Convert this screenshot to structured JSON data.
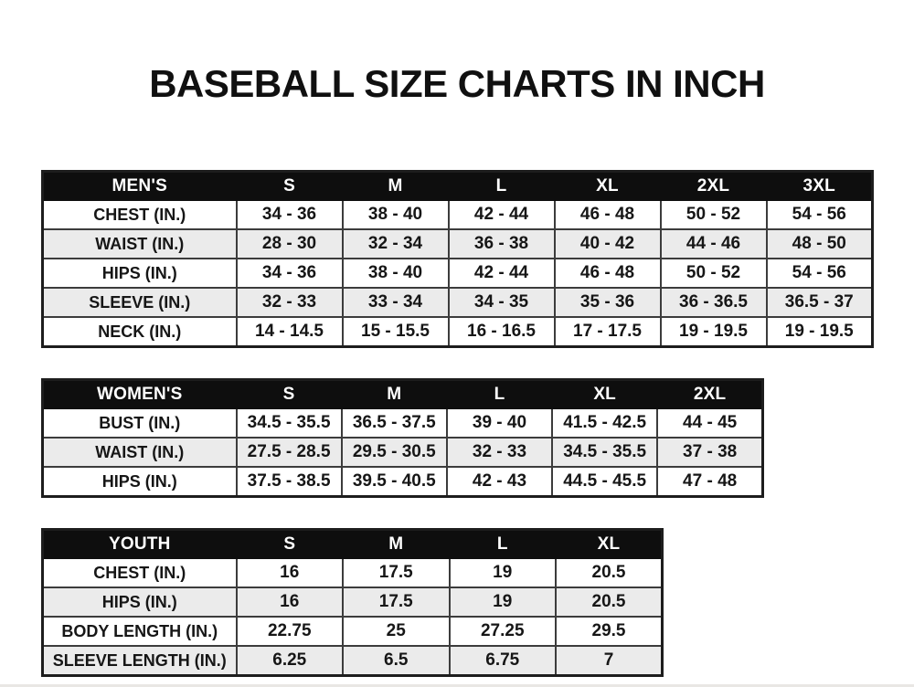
{
  "title": "BASEBALL SIZE CHARTS IN INCH",
  "tables": {
    "mens": {
      "header": [
        "MEN'S",
        "S",
        "M",
        "L",
        "XL",
        "2XL",
        "3XL"
      ],
      "rows": [
        [
          "CHEST (IN.)",
          "34 - 36",
          "38 - 40",
          "42 - 44",
          "46 - 48",
          "50 - 52",
          "54 - 56"
        ],
        [
          "WAIST (IN.)",
          "28 - 30",
          "32 - 34",
          "36 - 38",
          "40 - 42",
          "44 - 46",
          "48 - 50"
        ],
        [
          "HIPS (IN.)",
          "34 - 36",
          "38 - 40",
          "42 - 44",
          "46 - 48",
          "50 - 52",
          "54 - 56"
        ],
        [
          "SLEEVE (IN.)",
          "32 - 33",
          "33 - 34",
          "34 - 35",
          "35 - 36",
          "36 - 36.5",
          "36.5 - 37"
        ],
        [
          "NECK (IN.)",
          "14 - 14.5",
          "15 - 15.5",
          "16 - 16.5",
          "17 - 17.5",
          "19 - 19.5",
          "19 - 19.5"
        ]
      ]
    },
    "womens": {
      "header": [
        "WOMEN'S",
        "S",
        "M",
        "L",
        "XL",
        "2XL"
      ],
      "rows": [
        [
          "BUST (IN.)",
          "34.5 - 35.5",
          "36.5 - 37.5",
          "39 - 40",
          "41.5 - 42.5",
          "44 - 45"
        ],
        [
          "WAIST (IN.)",
          "27.5 - 28.5",
          "29.5 - 30.5",
          "32 - 33",
          "34.5 - 35.5",
          "37 - 38"
        ],
        [
          "HIPS (IN.)",
          "37.5 - 38.5",
          "39.5 - 40.5",
          "42 - 43",
          "44.5 - 45.5",
          "47 - 48"
        ]
      ]
    },
    "youth": {
      "header": [
        "YOUTH",
        "S",
        "M",
        "L",
        "XL"
      ],
      "rows": [
        [
          "CHEST (IN.)",
          "16",
          "17.5",
          "19",
          "20.5"
        ],
        [
          "HIPS (IN.)",
          "16",
          "17.5",
          "19",
          "20.5"
        ],
        [
          "BODY LENGTH (IN.)",
          "22.75",
          "25",
          "27.25",
          "29.5"
        ],
        [
          "SLEEVE LENGTH (IN.)",
          "6.25",
          "6.5",
          "6.75",
          "7"
        ]
      ]
    }
  },
  "colors": {
    "header_bg": "#0e0e0e",
    "header_text": "#ffffff",
    "alt_row_bg": "#ebebeb",
    "border": "#3c3c3c",
    "text": "#161616"
  }
}
